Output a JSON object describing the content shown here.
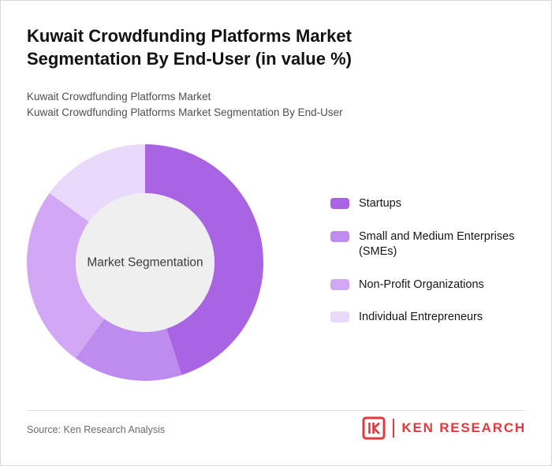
{
  "header": {
    "title_line1": "Kuwait Crowdfunding Platforms Market",
    "title_line2": "Segmentation By End-User (in value %)",
    "subtitle_line1": "Kuwait Crowdfunding Platforms Market",
    "subtitle_line2": "Kuwait Crowdfunding Platforms Market Segmentation By End-User"
  },
  "chart_data": {
    "type": "pie",
    "variant": "donut",
    "title": "Kuwait Crowdfunding Platforms Market Segmentation By End-User (in value %)",
    "units": "value %",
    "center_label": "Market Segmentation",
    "center_fill": "#EFEFEF",
    "legend_position": "right",
    "categories": [
      "Startups",
      "Small and Medium Enterprises (SMEs)",
      "Non-Profit Organizations",
      "Individual Entrepreneurs"
    ],
    "values": [
      45,
      15,
      25,
      15
    ],
    "colors": [
      "#A964E3",
      "#BE8CEE",
      "#D2A8F5",
      "#E9D9FB"
    ]
  },
  "footer": {
    "source": "Source: Ken Research Analysis",
    "brand": {
      "logo_letter": "K",
      "name": "KEN RESEARCH",
      "color": "#E03A3E"
    }
  }
}
